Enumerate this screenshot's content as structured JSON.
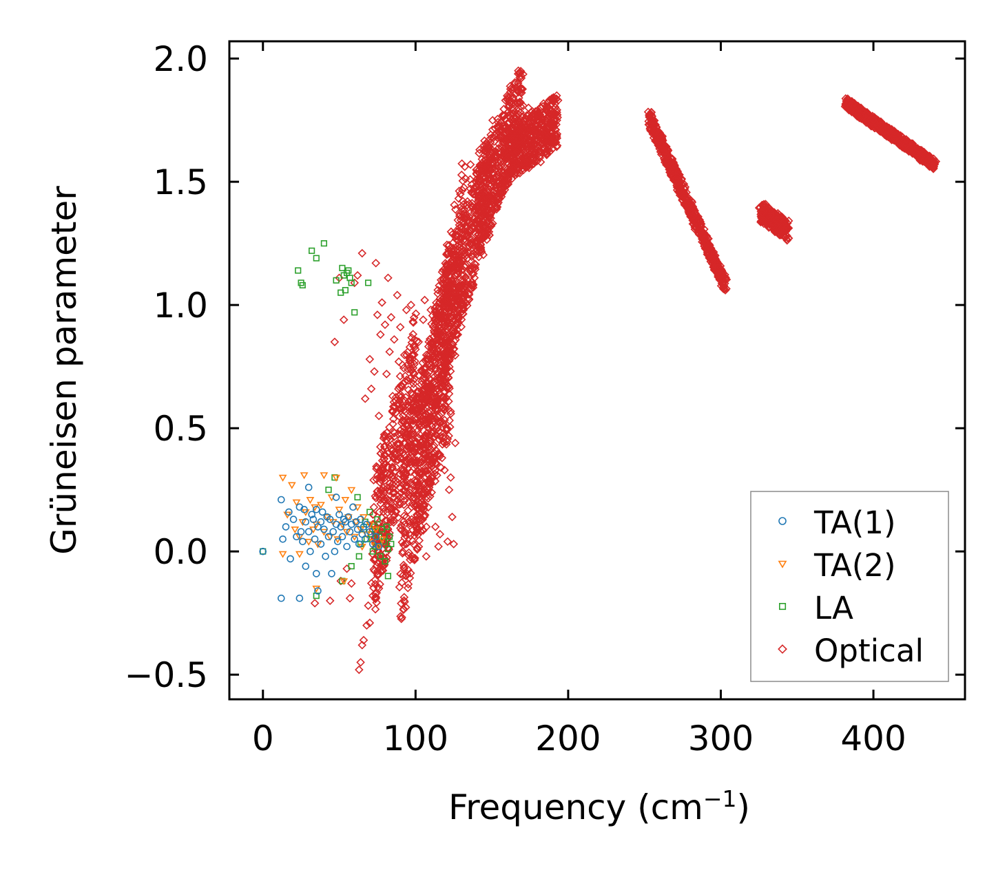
{
  "chart_data": {
    "type": "scatter",
    "title": "",
    "xlabel": "Frequency (cm",
    "xlabel_sup": "−1",
    "xlabel_end": ")",
    "ylabel": "Grüneisen parameter",
    "xlim": [
      -22,
      460
    ],
    "ylim": [
      -0.6,
      2.07
    ],
    "xticks": [
      0,
      100,
      200,
      300,
      400
    ],
    "xtick_labels": [
      "0",
      "100",
      "200",
      "300",
      "400"
    ],
    "yticks": [
      -0.5,
      0.0,
      0.5,
      1.0,
      1.5,
      2.0
    ],
    "ytick_labels": [
      "−0.5",
      "0.0",
      "0.5",
      "1.0",
      "1.5",
      "2.0"
    ],
    "grid": false,
    "legend_position": "lower-right",
    "series": [
      {
        "name": "TA(1)",
        "marker": "circle",
        "color": "#1f77b4",
        "points": [
          [
            0,
            0.0
          ],
          [
            12,
            0.21
          ],
          [
            12,
            -0.19
          ],
          [
            13,
            0.05
          ],
          [
            15,
            0.1
          ],
          [
            17,
            0.16
          ],
          [
            18,
            -0.03
          ],
          [
            20,
            0.13
          ],
          [
            22,
            0.06
          ],
          [
            24,
            0.18
          ],
          [
            24,
            -0.19
          ],
          [
            25,
            0.08
          ],
          [
            26,
            0.04
          ],
          [
            27,
            0.17
          ],
          [
            28,
            0.12
          ],
          [
            28,
            -0.06
          ],
          [
            30,
            0.26
          ],
          [
            30,
            0.08
          ],
          [
            31,
            0.0
          ],
          [
            32,
            0.15
          ],
          [
            33,
            0.13
          ],
          [
            34,
            0.05
          ],
          [
            35,
            0.17
          ],
          [
            35,
            -0.09
          ],
          [
            36,
            0.1
          ],
          [
            36,
            -0.16
          ],
          [
            38,
            0.12
          ],
          [
            38,
            0.03
          ],
          [
            39,
            0.16
          ],
          [
            40,
            0.09
          ],
          [
            41,
            -0.02
          ],
          [
            42,
            0.14
          ],
          [
            43,
            0.06
          ],
          [
            44,
            0.13
          ],
          [
            45,
            -0.09
          ],
          [
            46,
            0.08
          ],
          [
            47,
            0.0
          ],
          [
            48,
            0.22
          ],
          [
            48,
            0.11
          ],
          [
            49,
            0.04
          ],
          [
            50,
            0.15
          ],
          [
            51,
            0.1
          ],
          [
            52,
            0.06
          ],
          [
            53,
            0.13
          ],
          [
            54,
            0.12
          ],
          [
            55,
            0.02
          ],
          [
            56,
            0.14
          ],
          [
            57,
            0.08
          ],
          [
            58,
            0.11
          ],
          [
            59,
            0.18
          ],
          [
            60,
            0.05
          ],
          [
            61,
            0.12
          ],
          [
            62,
            0.09
          ],
          [
            63,
            0.03
          ],
          [
            64,
            0.13
          ],
          [
            65,
            0.07
          ],
          [
            66,
            0.1
          ],
          [
            67,
            0.05
          ],
          [
            68,
            0.11
          ],
          [
            70,
            0.08
          ],
          [
            72,
            0.03
          ],
          [
            74,
            0.06
          ],
          [
            76,
            0.02
          ]
        ]
      },
      {
        "name": "TA(2)",
        "marker": "triangle-down",
        "color": "#ff7f0e",
        "points": [
          [
            13,
            0.3
          ],
          [
            13,
            -0.01
          ],
          [
            16,
            0.15
          ],
          [
            19,
            0.27
          ],
          [
            21,
            0.09
          ],
          [
            22,
            0.2
          ],
          [
            24,
            0.06
          ],
          [
            24,
            -0.01
          ],
          [
            26,
            0.12
          ],
          [
            27,
            0.31
          ],
          [
            28,
            0.16
          ],
          [
            30,
            0.04
          ],
          [
            31,
            0.21
          ],
          [
            33,
            0.09
          ],
          [
            34,
            0.18
          ],
          [
            35,
            0.11
          ],
          [
            35,
            -0.15
          ],
          [
            36,
            0.03
          ],
          [
            38,
            0.19
          ],
          [
            40,
            0.31
          ],
          [
            40,
            0.08
          ],
          [
            42,
            0.14
          ],
          [
            44,
            0.06
          ],
          [
            45,
            0.22
          ],
          [
            46,
            0.12
          ],
          [
            48,
            0.3
          ],
          [
            49,
            0.05
          ],
          [
            50,
            0.17
          ],
          [
            52,
            0.11
          ],
          [
            53,
            -0.12
          ],
          [
            54,
            0.21
          ],
          [
            55,
            0.08
          ],
          [
            56,
            0.14
          ],
          [
            58,
            0.25
          ],
          [
            60,
            0.06
          ],
          [
            61,
            0.12
          ],
          [
            62,
            0.18
          ],
          [
            64,
            0.09
          ],
          [
            65,
            0.02
          ],
          [
            66,
            0.14
          ],
          [
            68,
            0.07
          ],
          [
            70,
            0.11
          ],
          [
            72,
            0.04
          ],
          [
            74,
            0.09
          ],
          [
            76,
            0.02
          ],
          [
            78,
            0.05
          ]
        ]
      },
      {
        "name": "LA",
        "marker": "square",
        "color": "#2ca02c",
        "points": [
          [
            0,
            0.0
          ],
          [
            23,
            1.14
          ],
          [
            25,
            1.09
          ],
          [
            26,
            1.08
          ],
          [
            32,
            1.22
          ],
          [
            35,
            1.19
          ],
          [
            40,
            1.25
          ],
          [
            35,
            -0.18
          ],
          [
            43,
            0.25
          ],
          [
            47,
            0.3
          ],
          [
            48,
            1.1
          ],
          [
            51,
            1.05
          ],
          [
            52,
            1.15
          ],
          [
            53,
            1.12
          ],
          [
            54,
            1.06
          ],
          [
            55,
            1.13
          ],
          [
            56,
            1.14
          ],
          [
            57,
            1.11
          ],
          [
            58,
            1.09
          ],
          [
            60,
            0.97
          ],
          [
            52,
            -0.12
          ],
          [
            58,
            -0.06
          ],
          [
            62,
            0.22
          ],
          [
            63,
            -0.02
          ],
          [
            64,
            0.03
          ],
          [
            66,
            0.09
          ],
          [
            67,
            0.12
          ],
          [
            68,
            0.05
          ],
          [
            69,
            1.09
          ],
          [
            70,
            0.16
          ],
          [
            71,
            0.07
          ],
          [
            72,
            0.0
          ],
          [
            73,
            0.1
          ],
          [
            74,
            0.02
          ],
          [
            75,
            0.13
          ],
          [
            76,
            0.06
          ],
          [
            77,
            -0.02
          ],
          [
            78,
            0.09
          ],
          [
            79,
            0.04
          ],
          [
            80,
            -0.04
          ],
          [
            81,
            0.1
          ],
          [
            82,
            0.01
          ],
          [
            82,
            -0.1
          ],
          [
            83,
            0.06
          ],
          [
            84,
            0.03
          ]
        ]
      },
      {
        "name": "Optical",
        "marker": "diamond",
        "color": "#d62728",
        "bands": [
          {
            "x0": 72,
            "x1": 100,
            "y0": 0.02,
            "y1": 0.7,
            "width": 0.55
          },
          {
            "x0": 90,
            "x1": 123,
            "y0": 0.05,
            "y1": 0.85,
            "width": 0.7
          },
          {
            "x0": 100,
            "x1": 132,
            "y0": 0.3,
            "y1": 1.3,
            "width": 0.6
          },
          {
            "x0": 118,
            "x1": 150,
            "y0": 0.9,
            "y1": 1.55,
            "width": 0.45
          },
          {
            "x0": 140,
            "x1": 170,
            "y0": 1.35,
            "y1": 1.82,
            "width": 0.35
          },
          {
            "x0": 160,
            "x1": 193,
            "y0": 1.6,
            "y1": 1.75,
            "width": 0.22
          },
          {
            "x0": 253,
            "x1": 303,
            "y0": 1.76,
            "y1": 1.08,
            "width": 0.06
          },
          {
            "x0": 326,
            "x1": 344,
            "y0": 1.38,
            "y1": 1.3,
            "width": 0.08
          },
          {
            "x0": 382,
            "x1": 440,
            "y0": 1.82,
            "y1": 1.57,
            "width": 0.04
          }
        ],
        "points": [
          [
            34,
            -0.21
          ],
          [
            44,
            -0.2
          ],
          [
            47,
            0.85
          ],
          [
            50,
            1.11
          ],
          [
            51,
            -0.12
          ],
          [
            53,
            0.94
          ],
          [
            55,
            -0.07
          ],
          [
            57,
            -0.19
          ],
          [
            58,
            -0.13
          ],
          [
            60,
            1.09
          ],
          [
            62,
            1.12
          ],
          [
            63,
            -0.48
          ],
          [
            64,
            -0.45
          ],
          [
            65,
            -0.38
          ],
          [
            65,
            1.21
          ],
          [
            66,
            -0.36
          ],
          [
            67,
            0.62
          ],
          [
            68,
            -0.3
          ],
          [
            69,
            -0.22
          ],
          [
            70,
            0.78
          ],
          [
            70,
            -0.29
          ],
          [
            71,
            0.66
          ],
          [
            72,
            -0.18
          ],
          [
            73,
            0.73
          ],
          [
            74,
            1.17
          ],
          [
            75,
            0.96
          ],
          [
            76,
            0.55
          ],
          [
            76,
            -0.15
          ],
          [
            77,
            0.88
          ],
          [
            78,
            1.01
          ],
          [
            79,
            -0.06
          ],
          [
            80,
            0.92
          ],
          [
            81,
            0.72
          ],
          [
            82,
            1.11
          ],
          [
            83,
            0.81
          ],
          [
            84,
            0.95
          ],
          [
            85,
            0.63
          ],
          [
            86,
            0.86
          ],
          [
            88,
            1.04
          ],
          [
            89,
            0.77
          ],
          [
            90,
            0.91
          ],
          [
            92,
            0.68
          ],
          [
            94,
            0.98
          ],
          [
            95,
            0.74
          ],
          [
            97,
            1.0
          ],
          [
            99,
            0.72
          ],
          [
            100,
            0.82
          ],
          [
            102,
            0.85
          ],
          [
            103,
            0.58
          ],
          [
            105,
            0.94
          ],
          [
            106,
            1.02
          ],
          [
            108,
            0.78
          ],
          [
            110,
            0.98
          ],
          [
            112,
            0.63
          ],
          [
            114,
            0.96
          ],
          [
            116,
            0.85
          ],
          [
            118,
            0.52
          ],
          [
            120,
            0.75
          ],
          [
            122,
            0.25
          ],
          [
            124,
            0.14
          ],
          [
            126,
            0.44
          ],
          [
            113,
            0.1
          ],
          [
            116,
            0.07
          ],
          [
            121,
            0.04
          ],
          [
            125,
            0.03
          ],
          [
            104,
            0.2
          ],
          [
            107,
            -0.02
          ],
          [
            111,
            0.36
          ],
          [
            115,
            0.02
          ],
          [
            119,
            0.33
          ],
          [
            123,
            0.3
          ],
          [
            128,
            1.3
          ],
          [
            130,
            1.4
          ],
          [
            132,
            1.22
          ],
          [
            134,
            1.42
          ],
          [
            136,
            1.57
          ],
          [
            138,
            1.35
          ],
          [
            140,
            1.48
          ],
          [
            142,
            1.63
          ],
          [
            144,
            1.55
          ],
          [
            146,
            1.44
          ],
          [
            148,
            1.4
          ],
          [
            150,
            1.63
          ],
          [
            152,
            1.55
          ],
          [
            154,
            1.5
          ],
          [
            156,
            1.68
          ],
          [
            158,
            1.62
          ],
          [
            160,
            1.55
          ],
          [
            162,
            1.76
          ],
          [
            164,
            1.82
          ],
          [
            166,
            1.86
          ],
          [
            168,
            1.94
          ],
          [
            170,
            1.71
          ],
          [
            172,
            1.67
          ],
          [
            174,
            1.8
          ],
          [
            176,
            1.76
          ],
          [
            178,
            1.73
          ],
          [
            180,
            1.61
          ],
          [
            182,
            1.58
          ],
          [
            184,
            1.69
          ],
          [
            186,
            1.72
          ],
          [
            188,
            1.65
          ],
          [
            190,
            1.68
          ],
          [
            192,
            1.66
          ],
          [
            303,
            1.06
          ],
          [
            440,
            1.57
          ]
        ]
      }
    ]
  }
}
